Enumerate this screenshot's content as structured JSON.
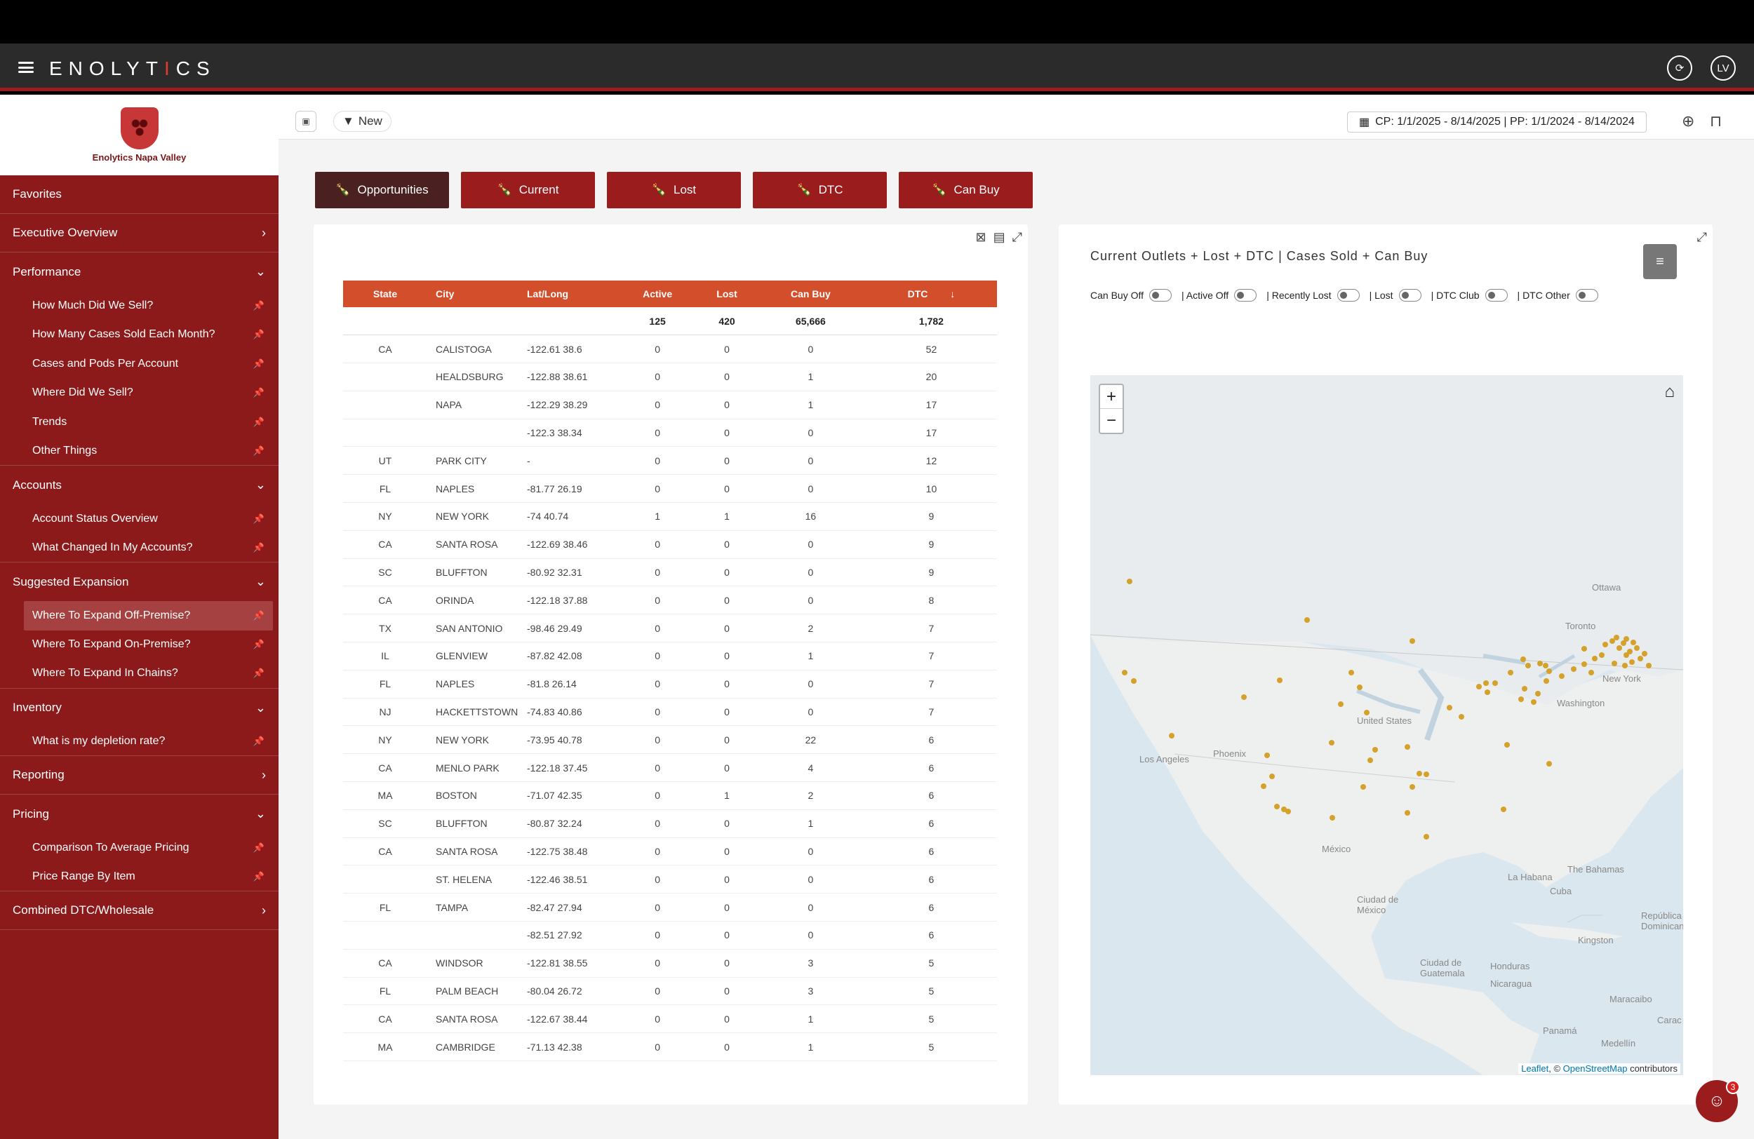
{
  "app": {
    "logo_prefix": "ENOLYT",
    "logo_i": "I",
    "logo_suffix": "CS",
    "user_initials": "LV"
  },
  "brand": {
    "name": "Enolytics Napa Valley"
  },
  "sidebar": {
    "favorites": "Favorites",
    "executive_overview": "Executive Overview",
    "performance": {
      "label": "Performance",
      "items": [
        "How Much Did We Sell?",
        "How Many Cases Sold Each Month?",
        "Cases and Pods Per Account",
        "Where Did We Sell?",
        "Trends",
        "Other Things"
      ]
    },
    "accounts": {
      "label": "Accounts",
      "items": [
        "Account Status Overview",
        "What Changed In My Accounts?"
      ]
    },
    "suggested_expansion": {
      "label": "Suggested Expansion",
      "items": [
        "Where To Expand Off-Premise?",
        "Where To Expand On-Premise?",
        "Where To Expand In Chains?"
      ]
    },
    "inventory": {
      "label": "Inventory",
      "items": [
        "What is my depletion rate?"
      ]
    },
    "reporting": "Reporting",
    "pricing": {
      "label": "Pricing",
      "items": [
        "Comparison To Average Pricing",
        "Price Range By Item"
      ]
    },
    "combined": "Combined DTC/Wholesale"
  },
  "toolbar": {
    "new_label": "New",
    "date_range": "CP: 1/1/2025 - 8/14/2025 | PP: 1/1/2024 - 8/14/2024"
  },
  "tabs": [
    "Opportunities",
    "Current",
    "Lost",
    "DTC",
    "Can Buy"
  ],
  "table": {
    "headers": [
      "State",
      "City",
      "Lat/Long",
      "Active",
      "Lost",
      "Can Buy",
      "DTC"
    ],
    "totals": [
      "",
      "",
      "",
      "125",
      "420",
      "65,666",
      "1,782"
    ],
    "rows": [
      [
        "CA",
        "CALISTOGA",
        "-122.61 38.6",
        "0",
        "0",
        "0",
        "52"
      ],
      [
        "",
        "HEALDSBURG",
        "-122.88 38.61",
        "0",
        "0",
        "1",
        "20"
      ],
      [
        "",
        "NAPA",
        "-122.29 38.29",
        "0",
        "0",
        "1",
        "17"
      ],
      [
        "",
        "",
        "-122.3 38.34",
        "0",
        "0",
        "0",
        "17"
      ],
      [
        "UT",
        "PARK CITY",
        "-",
        "0",
        "0",
        "0",
        "12"
      ],
      [
        "FL",
        "NAPLES",
        "-81.77 26.19",
        "0",
        "0",
        "0",
        "10"
      ],
      [
        "NY",
        "NEW YORK",
        "-74 40.74",
        "1",
        "1",
        "16",
        "9"
      ],
      [
        "CA",
        "SANTA ROSA",
        "-122.69 38.46",
        "0",
        "0",
        "0",
        "9"
      ],
      [
        "SC",
        "BLUFFTON",
        "-80.92 32.31",
        "0",
        "0",
        "0",
        "9"
      ],
      [
        "CA",
        "ORINDA",
        "-122.18 37.88",
        "0",
        "0",
        "0",
        "8"
      ],
      [
        "TX",
        "SAN ANTONIO",
        "-98.46 29.49",
        "0",
        "0",
        "2",
        "7"
      ],
      [
        "IL",
        "GLENVIEW",
        "-87.82 42.08",
        "0",
        "0",
        "1",
        "7"
      ],
      [
        "FL",
        "NAPLES",
        "-81.8 26.14",
        "0",
        "0",
        "0",
        "7"
      ],
      [
        "NJ",
        "HACKETTSTOWN",
        "-74.83 40.86",
        "0",
        "0",
        "0",
        "7"
      ],
      [
        "NY",
        "NEW YORK",
        "-73.95 40.78",
        "0",
        "0",
        "22",
        "6"
      ],
      [
        "CA",
        "MENLO PARK",
        "-122.18 37.45",
        "0",
        "0",
        "4",
        "6"
      ],
      [
        "MA",
        "BOSTON",
        "-71.07 42.35",
        "0",
        "1",
        "2",
        "6"
      ],
      [
        "SC",
        "BLUFFTON",
        "-80.87 32.24",
        "0",
        "0",
        "1",
        "6"
      ],
      [
        "CA",
        "SANTA ROSA",
        "-122.75 38.48",
        "0",
        "0",
        "0",
        "6"
      ],
      [
        "",
        "ST. HELENA",
        "-122.46 38.51",
        "0",
        "0",
        "0",
        "6"
      ],
      [
        "FL",
        "TAMPA",
        "-82.47 27.94",
        "0",
        "0",
        "0",
        "6"
      ],
      [
        "",
        "",
        "-82.51 27.92",
        "0",
        "0",
        "0",
        "6"
      ],
      [
        "CA",
        "WINDSOR",
        "-122.81 38.55",
        "0",
        "0",
        "3",
        "5"
      ],
      [
        "FL",
        "PALM BEACH",
        "-80.04 26.72",
        "0",
        "0",
        "3",
        "5"
      ],
      [
        "CA",
        "SANTA ROSA",
        "-122.67 38.44",
        "0",
        "0",
        "1",
        "5"
      ],
      [
        "MA",
        "CAMBRIDGE",
        "-71.13 42.38",
        "0",
        "0",
        "1",
        "5"
      ]
    ]
  },
  "map": {
    "title": "Current Outlets + Lost + DTC | Cases Sold + Can Buy",
    "toggles": [
      "Can Buy Off",
      "| Active Off",
      "| Recently Lost",
      "| Lost",
      "| DTC Club",
      "| DTC Other"
    ],
    "labels": {
      "ottawa": "Ottawa",
      "toronto": "Toronto",
      "new_york": "New York",
      "washington": "Washington",
      "united_states": "United States",
      "los_angeles": "Los Angeles",
      "phoenix": "Phoenix",
      "mexico": "México",
      "ciudad_mexico": "Ciudad de México",
      "la_habana": "La Habana",
      "cuba": "Cuba",
      "the_bahamas": "The Bahamas",
      "republica_dominicana": "República Dominicana",
      "kingston": "Kingston",
      "ciudad_guatemala": "Ciudad de Guatemala",
      "honduras": "Honduras",
      "nicaragua": "Nicaragua",
      "panama": "Panamá",
      "maracaibo": "Maracaibo",
      "medellin": "Medellín",
      "caracas": "Carac"
    },
    "attribution_leaflet": "Leaflet",
    "attribution_sep": ", © ",
    "attribution_osm": "OpenStreetMap",
    "attribution_tail": " contributors",
    "dot_color": "#d4a12a"
  },
  "chat": {
    "badge": "3"
  }
}
